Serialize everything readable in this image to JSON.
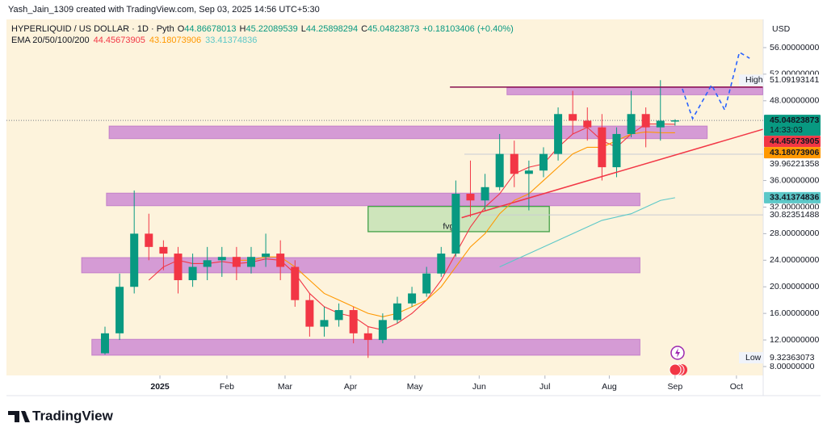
{
  "header": {
    "author_line": "Yash_Jain_1309 created with TradingView.com, Sep 03, 2025 14:56 UTC+5:30",
    "symbol": "HYPERLIQUID / US DOLLAR · 1D · Pyth",
    "ohlc": [
      {
        "label": "O",
        "value": 44.86678013
      },
      {
        "label": "H",
        "value": 45.22089539
      },
      {
        "label": "L",
        "value": 44.25898294
      },
      {
        "label": "C",
        "value": 45.04823873
      }
    ],
    "change": "+0.18103406 (+0.40%)",
    "indicator": "EMA 20/50/100/200"
  },
  "chart_data": {
    "type": "candlestick",
    "axis_unit": "USD",
    "up_color": "#089981",
    "down_color": "#f23645",
    "categories": [
      null,
      null,
      null,
      null,
      null,
      null,
      null,
      null,
      null,
      null,
      null,
      null,
      null,
      null,
      null,
      null,
      null,
      null,
      null,
      null,
      null,
      null,
      null,
      null,
      null,
      null,
      null,
      null,
      null,
      null,
      null,
      null,
      null,
      null,
      null,
      null,
      null,
      null,
      null,
      null
    ],
    "open": [
      10,
      13,
      20,
      28,
      26,
      25,
      21,
      23,
      24,
      24.5,
      23,
      24.5,
      25,
      23,
      18,
      14,
      15,
      16.5,
      13,
      12,
      15,
      17.5,
      19,
      22,
      25,
      34,
      33,
      35,
      40,
      37,
      37.5,
      40,
      46,
      45,
      44,
      38,
      43,
      46,
      44,
      44.87
    ],
    "high": [
      14,
      22,
      34.5,
      31,
      27,
      26,
      25,
      26,
      26,
      26,
      26,
      28,
      27,
      24,
      19,
      17,
      17.5,
      17,
      14,
      16,
      18.5,
      20,
      23,
      26,
      36,
      39,
      37,
      43,
      42,
      39,
      41,
      47,
      49.5,
      47,
      46,
      44,
      49.5,
      47,
      51.1,
      45.22
    ],
    "low": [
      9.8,
      12,
      19,
      24,
      22.5,
      19,
      20,
      21,
      21.5,
      21,
      22,
      23,
      21,
      17,
      12.5,
      12.5,
      14,
      11.5,
      9.3,
      11.5,
      14.5,
      17,
      18.5,
      21.5,
      24.5,
      30.5,
      31.5,
      34.5,
      35,
      31.5,
      36.5,
      39,
      43,
      42,
      36,
      36.5,
      42.5,
      41,
      42,
      44.26
    ],
    "close": [
      13,
      20,
      28,
      26,
      25,
      21,
      23,
      24,
      24.5,
      23,
      24.5,
      25,
      23,
      18,
      14,
      15,
      16.5,
      13,
      12,
      15,
      17.5,
      19,
      22,
      25,
      34,
      33,
      35,
      40,
      37,
      37.5,
      40,
      46,
      45,
      44,
      38,
      43,
      46,
      44,
      45,
      45.05
    ],
    "ema": [
      {
        "color": "#f23645",
        "last": 44.45673905,
        "values": [
          null,
          null,
          null,
          21,
          23,
          24,
          23.5,
          23.5,
          23.8,
          23.5,
          23.7,
          24.2,
          24,
          22,
          19,
          17,
          16,
          15.5,
          14,
          13.5,
          14.5,
          16,
          18,
          21,
          25,
          29,
          32,
          34,
          37,
          38,
          38.5,
          41,
          43,
          44,
          42,
          41,
          43,
          44.5,
          44.5,
          44.46
        ]
      },
      {
        "color": "#ff9800",
        "last": 43.18073906,
        "values": [
          null,
          null,
          null,
          null,
          null,
          null,
          null,
          null,
          null,
          24,
          24,
          24.5,
          24.5,
          23,
          21,
          19,
          18,
          17,
          16,
          15.5,
          16,
          17,
          18,
          20,
          23,
          26,
          28,
          31,
          33,
          34,
          36,
          38,
          40,
          41,
          41,
          42,
          43,
          43.3,
          43.2,
          43.18
        ]
      },
      {
        "color": "#5cc8c8",
        "last": 33.41374836,
        "values": [
          null,
          null,
          null,
          null,
          null,
          null,
          null,
          null,
          null,
          null,
          null,
          null,
          null,
          null,
          null,
          null,
          null,
          null,
          null,
          null,
          null,
          null,
          null,
          null,
          null,
          null,
          null,
          23,
          24,
          25,
          26,
          27,
          28,
          29,
          30,
          30.5,
          31,
          32,
          33,
          33.41
        ]
      }
    ],
    "xlim": [
      -6.74,
      45.03
    ],
    "xticks": [
      {
        "value": 3.76,
        "label": "2025"
      },
      {
        "value": 8.34,
        "label": "Feb"
      },
      {
        "value": 12.32,
        "label": "Mar"
      },
      {
        "value": 16.8,
        "label": "Apr"
      },
      {
        "value": 21.2,
        "label": "May"
      },
      {
        "value": 25.6,
        "label": "Jun"
      },
      {
        "value": 30.1,
        "label": "Jul"
      },
      {
        "value": 34.5,
        "label": "Aug"
      },
      {
        "value": 39,
        "label": "Sep"
      },
      {
        "value": 43.2,
        "label": "Oct"
      }
    ],
    "ylim": [
      6.66,
      60.25
    ],
    "yticks": [
      {
        "value": 56,
        "label": "56.00000000"
      },
      {
        "value": 52,
        "label": "52.00000000"
      },
      {
        "value": 48,
        "label": "48.00000000"
      },
      {
        "value": 36,
        "label": "36.00000000"
      },
      {
        "value": 32,
        "label": "32.00000000"
      },
      {
        "value": 28,
        "label": "28.00000000"
      },
      {
        "value": 24,
        "label": "24.00000000"
      },
      {
        "value": 20,
        "label": "20.00000000"
      },
      {
        "value": 16,
        "label": "16.00000000"
      },
      {
        "value": 12,
        "label": "12.00000000"
      },
      {
        "value": 8,
        "label": "8.00000000"
      }
    ],
    "zones": [
      {
        "x": [
          27.5,
          45
        ],
        "y": [
          48.9,
          50.0
        ]
      },
      {
        "x": [
          0.28,
          41.2
        ],
        "y": [
          42.3,
          44.2
        ]
      },
      {
        "x": [
          0.1,
          36.6
        ],
        "y": [
          32.2,
          34.1
        ]
      },
      {
        "x": [
          -1.6,
          36.6
        ],
        "y": [
          22.1,
          24.4
        ]
      },
      {
        "x": [
          -0.9,
          36.6
        ],
        "y": [
          9.7,
          12.1
        ]
      }
    ],
    "fvg": {
      "label": "fvg",
      "x": [
        18.0,
        30.4
      ],
      "y": [
        28.3,
        32.1
      ]
    },
    "resistance": {
      "x": [
        23.6,
        45
      ],
      "y": [
        50.05,
        50.05
      ]
    },
    "trendline": {
      "x": [
        24.4,
        45
      ],
      "y": [
        30.4,
        43.7
      ]
    },
    "projection": {
      "x": [
        39.5,
        40.2,
        41.5,
        42.4,
        43.4,
        44.1
      ],
      "y": [
        49.8,
        45.3,
        50.4,
        46.6,
        55.3,
        54.4
      ]
    },
    "last_price": {
      "value": 45.04823873,
      "countdown": "14:33:03"
    },
    "price_levels": [
      {
        "label": "High",
        "value": 51.09193141
      },
      {
        "value": 39.96221358
      },
      {
        "value": 30.82351488
      },
      {
        "label": "Low",
        "value": 9.32363073
      }
    ]
  },
  "footer": {
    "logo": "TradingView"
  }
}
